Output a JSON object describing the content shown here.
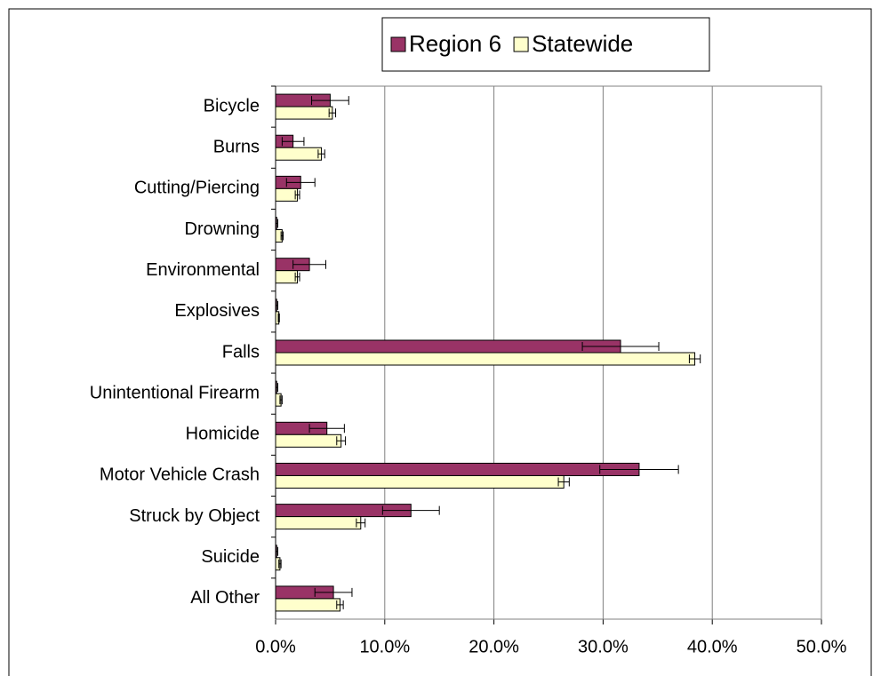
{
  "chart_data": {
    "type": "bar",
    "orientation": "horizontal",
    "categories": [
      "Bicycle",
      "Burns",
      "Cutting/Piercing",
      "Drowning",
      "Environmental",
      "Explosives",
      "Falls",
      "Unintentional Firearm",
      "Homicide",
      "Motor Vehicle Crash",
      "Struck by Object",
      "Suicide",
      "All Other"
    ],
    "series": [
      {
        "name": "Region 6",
        "color": "#993366",
        "values": [
          5.0,
          1.6,
          2.3,
          0.1,
          3.1,
          0.1,
          31.6,
          0.1,
          4.7,
          33.3,
          12.4,
          0.1,
          5.3
        ],
        "errors": [
          1.7,
          1.0,
          1.3,
          0.1,
          1.5,
          0.1,
          3.5,
          0.1,
          1.6,
          3.6,
          2.6,
          0.1,
          1.7
        ]
      },
      {
        "name": "Statewide",
        "color": "#ffffcc",
        "values": [
          5.2,
          4.2,
          2.0,
          0.6,
          2.0,
          0.3,
          38.4,
          0.5,
          6.0,
          26.4,
          7.8,
          0.4,
          5.9
        ],
        "errors": [
          0.3,
          0.3,
          0.2,
          0.1,
          0.2,
          0.05,
          0.5,
          0.1,
          0.4,
          0.5,
          0.4,
          0.1,
          0.3
        ]
      }
    ],
    "xlim": [
      0,
      50
    ],
    "xticks": [
      {
        "value": 0,
        "label": "0.0%"
      },
      {
        "value": 10,
        "label": "10.0%"
      },
      {
        "value": 20,
        "label": "20.0%"
      },
      {
        "value": 30,
        "label": "30.0%"
      },
      {
        "value": 40,
        "label": "40.0%"
      },
      {
        "value": 50,
        "label": "50.0%"
      }
    ],
    "grid": true,
    "legend": "top"
  }
}
